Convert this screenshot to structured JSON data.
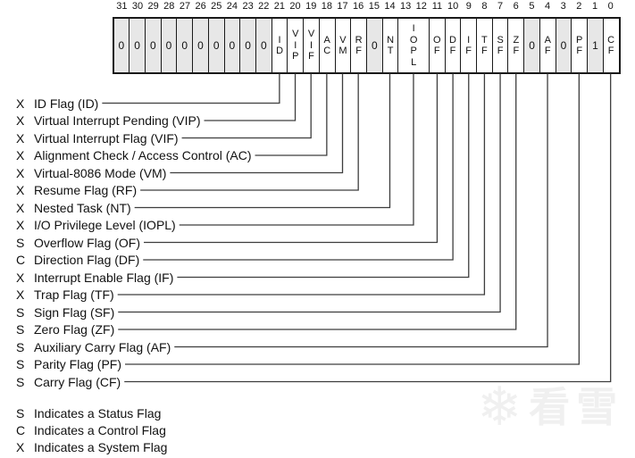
{
  "register": {
    "bit_numbers": [
      "31",
      "30",
      "29",
      "28",
      "27",
      "26",
      "25",
      "24",
      "23",
      "22",
      "21",
      "20",
      "19",
      "18",
      "17",
      "16",
      "15",
      "14",
      "13",
      "12",
      "11",
      "10",
      "9",
      "8",
      "7",
      "6",
      "5",
      "4",
      "3",
      "2",
      "1",
      "0"
    ],
    "cells": [
      {
        "bit": "31",
        "label": "0",
        "shaded": true,
        "units": 1
      },
      {
        "bit": "30",
        "label": "0",
        "shaded": true,
        "units": 1
      },
      {
        "bit": "29",
        "label": "0",
        "shaded": true,
        "units": 1
      },
      {
        "bit": "28",
        "label": "0",
        "shaded": true,
        "units": 1
      },
      {
        "bit": "27",
        "label": "0",
        "shaded": true,
        "units": 1
      },
      {
        "bit": "26",
        "label": "0",
        "shaded": true,
        "units": 1
      },
      {
        "bit": "25",
        "label": "0",
        "shaded": true,
        "units": 1
      },
      {
        "bit": "24",
        "label": "0",
        "shaded": true,
        "units": 1
      },
      {
        "bit": "23",
        "label": "0",
        "shaded": true,
        "units": 1
      },
      {
        "bit": "22",
        "label": "0",
        "shaded": true,
        "units": 1
      },
      {
        "bit": "21",
        "label": "ID",
        "shaded": false,
        "units": 1
      },
      {
        "bit": "20",
        "label": "VIP",
        "shaded": false,
        "units": 1
      },
      {
        "bit": "19",
        "label": "VIF",
        "shaded": false,
        "units": 1
      },
      {
        "bit": "18",
        "label": "AC",
        "shaded": false,
        "units": 1
      },
      {
        "bit": "17",
        "label": "VM",
        "shaded": false,
        "units": 1
      },
      {
        "bit": "16",
        "label": "RF",
        "shaded": false,
        "units": 1
      },
      {
        "bit": "15",
        "label": "0",
        "shaded": true,
        "units": 1
      },
      {
        "bit": "14",
        "label": "NT",
        "shaded": false,
        "units": 1
      },
      {
        "bit": "13-12",
        "label": "IOPL",
        "shaded": false,
        "units": 2
      },
      {
        "bit": "11",
        "label": "OF",
        "shaded": false,
        "units": 1
      },
      {
        "bit": "10",
        "label": "DF",
        "shaded": false,
        "units": 1
      },
      {
        "bit": "9",
        "label": "IF",
        "shaded": false,
        "units": 1
      },
      {
        "bit": "8",
        "label": "TF",
        "shaded": false,
        "units": 1
      },
      {
        "bit": "7",
        "label": "SF",
        "shaded": false,
        "units": 1
      },
      {
        "bit": "6",
        "label": "ZF",
        "shaded": false,
        "units": 1
      },
      {
        "bit": "5",
        "label": "0",
        "shaded": true,
        "units": 1
      },
      {
        "bit": "4",
        "label": "AF",
        "shaded": false,
        "units": 1
      },
      {
        "bit": "3",
        "label": "0",
        "shaded": true,
        "units": 1
      },
      {
        "bit": "2",
        "label": "PF",
        "shaded": false,
        "units": 1
      },
      {
        "bit": "1",
        "label": "1",
        "shaded": true,
        "units": 1
      },
      {
        "bit": "0",
        "label": "CF",
        "shaded": false,
        "units": 1
      }
    ]
  },
  "flags": [
    {
      "type": "X",
      "name": "ID Flag (ID)",
      "cell": "ID"
    },
    {
      "type": "X",
      "name": "Virtual Interrupt Pending (VIP)",
      "cell": "VIP"
    },
    {
      "type": "X",
      "name": "Virtual Interrupt Flag (VIF)",
      "cell": "VIF"
    },
    {
      "type": "X",
      "name": "Alignment Check / Access Control (AC)",
      "cell": "AC"
    },
    {
      "type": "X",
      "name": "Virtual-8086 Mode (VM)",
      "cell": "VM"
    },
    {
      "type": "X",
      "name": "Resume Flag (RF)",
      "cell": "RF"
    },
    {
      "type": "X",
      "name": "Nested Task (NT)",
      "cell": "NT"
    },
    {
      "type": "X",
      "name": "I/O Privilege Level (IOPL)",
      "cell": "IOPL"
    },
    {
      "type": "S",
      "name": "Overflow Flag (OF)",
      "cell": "OF"
    },
    {
      "type": "C",
      "name": "Direction Flag (DF)",
      "cell": "DF"
    },
    {
      "type": "X",
      "name": "Interrupt Enable Flag (IF)",
      "cell": "IF"
    },
    {
      "type": "X",
      "name": "Trap Flag (TF)",
      "cell": "TF"
    },
    {
      "type": "S",
      "name": "Sign Flag (SF)",
      "cell": "SF"
    },
    {
      "type": "S",
      "name": "Zero Flag (ZF)",
      "cell": "ZF"
    },
    {
      "type": "S",
      "name": "Auxiliary Carry Flag (AF)",
      "cell": "AF"
    },
    {
      "type": "S",
      "name": "Parity Flag (PF)",
      "cell": "PF"
    },
    {
      "type": "S",
      "name": "Carry Flag (CF)",
      "cell": "CF"
    }
  ],
  "legend": [
    {
      "type": "S",
      "text": "Indicates a Status Flag"
    },
    {
      "type": "C",
      "text": "Indicates a Control Flag"
    },
    {
      "type": "X",
      "text": "Indicates a System Flag"
    }
  ],
  "watermark": {
    "icon": "snowflake-icon",
    "text": "看雪"
  },
  "colors": {
    "border": "#1a1a1a",
    "connector_line": "#3d3d3d",
    "cell_shaded": "#e7e7e7",
    "text": "#111111",
    "watermark": "#f0f0f0"
  }
}
